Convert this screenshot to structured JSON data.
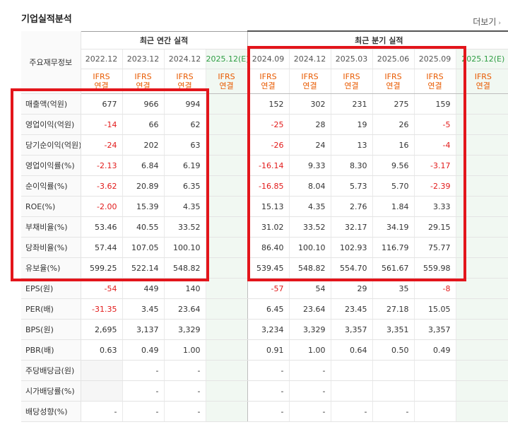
{
  "header": {
    "title": "기업실적분석",
    "more_label": "더보기",
    "more_icon": "chevron-right-icon"
  },
  "table": {
    "corner_label": "주요재무정보",
    "groups": {
      "annual": "최근 연간 실적",
      "quarterly": "최근 분기 실적"
    },
    "annual_periods": [
      "2022.12",
      "2023.12",
      "2024.12",
      "2025.12(E)"
    ],
    "quarter_periods": [
      "2024.09",
      "2024.12",
      "2025.03",
      "2025.06",
      "2025.09",
      "2025.12(E)"
    ],
    "ifrs_line1": "IFRS",
    "ifrs_line2": "연결",
    "rows": [
      {
        "label": "매출액(억원)",
        "annual": [
          "677",
          "966",
          "994",
          ""
        ],
        "quarter": [
          "152",
          "302",
          "231",
          "275",
          "159",
          ""
        ]
      },
      {
        "label": "영업이익(억원)",
        "annual": [
          "-14",
          "66",
          "62",
          ""
        ],
        "quarter": [
          "-25",
          "28",
          "19",
          "26",
          "-5",
          ""
        ]
      },
      {
        "label": "당기순이익(억원)",
        "annual": [
          "-24",
          "202",
          "63",
          ""
        ],
        "quarter": [
          "-26",
          "24",
          "13",
          "16",
          "-4",
          ""
        ]
      },
      {
        "label": "영업이익률(%)",
        "annual": [
          "-2.13",
          "6.84",
          "6.19",
          ""
        ],
        "quarter": [
          "-16.14",
          "9.33",
          "8.30",
          "9.56",
          "-3.17",
          ""
        ]
      },
      {
        "label": "순이익률(%)",
        "annual": [
          "-3.62",
          "20.89",
          "6.35",
          ""
        ],
        "quarter": [
          "-16.85",
          "8.04",
          "5.73",
          "5.70",
          "-2.39",
          ""
        ]
      },
      {
        "label": "ROE(%)",
        "annual": [
          "-2.00",
          "15.39",
          "4.35",
          ""
        ],
        "quarter": [
          "15.13",
          "4.35",
          "2.76",
          "1.84",
          "3.33",
          ""
        ]
      },
      {
        "label": "부채비율(%)",
        "annual": [
          "53.46",
          "40.55",
          "33.52",
          ""
        ],
        "quarter": [
          "31.02",
          "33.52",
          "32.17",
          "34.19",
          "29.15",
          ""
        ]
      },
      {
        "label": "당좌비율(%)",
        "annual": [
          "57.44",
          "107.05",
          "100.10",
          ""
        ],
        "quarter": [
          "86.40",
          "100.10",
          "102.93",
          "116.79",
          "75.77",
          ""
        ]
      },
      {
        "label": "유보율(%)",
        "annual": [
          "599.25",
          "522.14",
          "548.82",
          ""
        ],
        "quarter": [
          "539.45",
          "548.82",
          "554.70",
          "561.67",
          "559.98",
          ""
        ]
      },
      {
        "label": "EPS(원)",
        "annual": [
          "-54",
          "449",
          "140",
          ""
        ],
        "quarter": [
          "-57",
          "54",
          "29",
          "35",
          "-8",
          ""
        ]
      },
      {
        "label": "PER(배)",
        "annual": [
          "-31.35",
          "3.45",
          "23.64",
          ""
        ],
        "quarter": [
          "6.45",
          "23.64",
          "23.45",
          "27.18",
          "15.05",
          ""
        ]
      },
      {
        "label": "BPS(원)",
        "annual": [
          "2,695",
          "3,137",
          "3,329",
          ""
        ],
        "quarter": [
          "3,234",
          "3,329",
          "3,357",
          "3,351",
          "3,357",
          ""
        ]
      },
      {
        "label": "PBR(배)",
        "annual": [
          "0.63",
          "0.49",
          "1.00",
          ""
        ],
        "quarter": [
          "0.91",
          "1.00",
          "0.64",
          "0.50",
          "0.49",
          ""
        ]
      },
      {
        "label": "주당배당금(원)",
        "annual": [
          "",
          "-",
          "-",
          ""
        ],
        "quarter": [
          "-",
          "-",
          "",
          "",
          "",
          ""
        ]
      },
      {
        "label": "시가배당률(%)",
        "annual": [
          "",
          "-",
          "-",
          ""
        ],
        "quarter": [
          "-",
          "-",
          "",
          "",
          "",
          ""
        ]
      },
      {
        "label": "배당성향(%)",
        "annual": [
          "-",
          "-",
          "-",
          ""
        ],
        "quarter": [
          "-",
          "-",
          "-",
          "-",
          "",
          ""
        ]
      }
    ]
  },
  "colors": {
    "negative": "#e21a1a",
    "ifrs": "#e85a00",
    "estimate": "#2f9e44",
    "highlight_box": "#e3151b"
  }
}
